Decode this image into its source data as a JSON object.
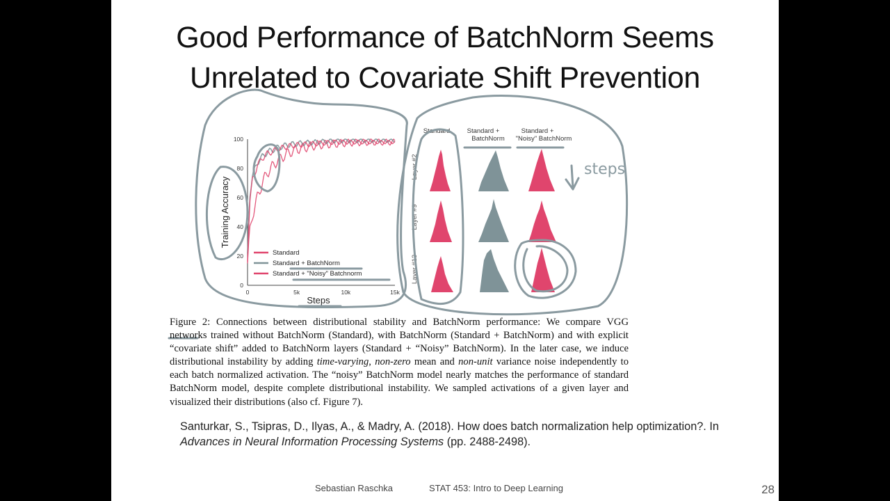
{
  "slide": {
    "title_line1": "Good Performance of BatchNorm Seems",
    "title_line2": "Unrelated to Covariate Shift Prevention",
    "page_number": "28",
    "footer_author": "Sebastian Raschka",
    "footer_course": "STAT 453: Intro to Deep Learning"
  },
  "figure": {
    "column_labels": [
      "Standard",
      "Standard +",
      "BatchNorm",
      "Standard +",
      "\"Noisy\" BatchNorm"
    ],
    "row_labels": [
      "Layer #2",
      "Layer #9",
      "Layer #13"
    ],
    "annotation": "steps",
    "colors": {
      "standard": "#e0456d",
      "batchnorm": "#7f9398",
      "noisy": "#e0456d",
      "ink": "#8a9aa0"
    }
  },
  "chart_data": {
    "type": "line",
    "xlabel": "Steps",
    "ylabel": "Training Accuracy",
    "x_ticks": [
      "0",
      "5k",
      "10k",
      "15k"
    ],
    "y_ticks": [
      "0",
      "20",
      "40",
      "60",
      "80",
      "100"
    ],
    "xlim": [
      0,
      15000
    ],
    "ylim": [
      0,
      100
    ],
    "legend_position": "bottom-right",
    "series": [
      {
        "name": "Standard",
        "x": [
          0,
          200,
          500,
          1000,
          1500,
          2000,
          3000,
          4000,
          5000,
          7000,
          9000,
          11000,
          13000,
          15000
        ],
        "values": [
          15,
          35,
          48,
          60,
          70,
          77,
          85,
          90,
          93,
          96,
          97,
          98,
          98,
          98
        ]
      },
      {
        "name": "Standard + BatchNorm",
        "x": [
          0,
          200,
          500,
          1000,
          1500,
          2000,
          3000,
          4000,
          5000,
          7000,
          9000,
          11000,
          13000,
          15000
        ],
        "values": [
          20,
          60,
          75,
          84,
          88,
          91,
          94,
          96,
          97,
          98,
          99,
          99,
          99,
          99
        ]
      },
      {
        "name": "Standard + \"Noisy\" Batchnorm",
        "x": [
          0,
          200,
          500,
          1000,
          1500,
          2000,
          3000,
          4000,
          5000,
          7000,
          9000,
          11000,
          13000,
          15000
        ],
        "values": [
          18,
          55,
          72,
          82,
          87,
          90,
          93,
          95,
          96,
          97,
          98,
          98,
          98,
          98
        ]
      }
    ]
  },
  "caption": {
    "p1": "Figure 2: Connections between distributional stability and BatchNorm performance: We compare VGG networks trained without BatchNorm (Standard), with BatchNorm (Standard + BatchNorm) and with explicit “covariate shift” added to BatchNorm layers (Standard + “Noisy” BatchNorm). In the later case, we induce distributional instability by adding ",
    "em1": "time-varying",
    "p2": ", ",
    "em2": "non-zero",
    "p3": " mean and ",
    "em3": "non-unit",
    "p4": " variance noise independently to each batch normalized activation. The “noisy” BatchNorm model nearly matches the performance of standard BatchNorm model, despite complete distributional instability. We sampled activations of a given layer and visualized their distributions (also cf. Figure 7)."
  },
  "reference": {
    "r1": "Santurkar, S., Tsipras, D., Ilyas, A., & Madry, A. (2018). How does batch normalization help optimization?. In ",
    "r_em": "Advances in Neural Information Processing Systems",
    "r2": " (pp. 2488-2498)."
  }
}
